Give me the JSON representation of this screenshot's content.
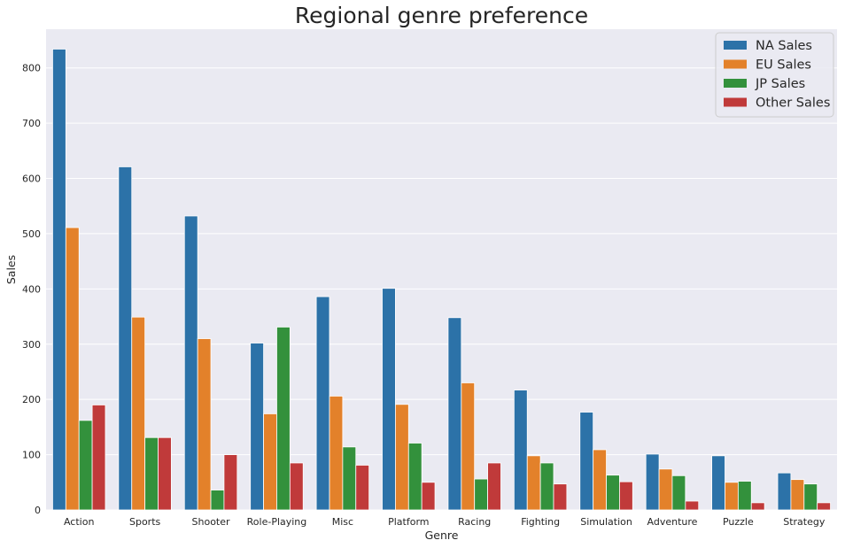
{
  "chart_data": {
    "type": "bar",
    "title": "Regional genre preference",
    "xlabel": "Genre",
    "ylabel": "Sales",
    "ylim": [
      0,
      870
    ],
    "yticks": [
      0,
      100,
      200,
      300,
      400,
      500,
      600,
      700,
      800
    ],
    "grid": true,
    "legend_position": "top-right",
    "categories": [
      "Action",
      "Sports",
      "Shooter",
      "Role-Playing",
      "Misc",
      "Platform",
      "Racing",
      "Fighting",
      "Simulation",
      "Adventure",
      "Puzzle",
      "Strategy"
    ],
    "series": [
      {
        "name": "NA Sales",
        "color": "#2c72a8",
        "values": [
          834,
          621,
          532,
          302,
          386,
          401,
          348,
          217,
          177,
          101,
          98,
          67
        ]
      },
      {
        "name": "EU Sales",
        "color": "#e3812a",
        "values": [
          511,
          349,
          310,
          174,
          206,
          191,
          230,
          98,
          109,
          74,
          50,
          55
        ]
      },
      {
        "name": "JP Sales",
        "color": "#33913c",
        "values": [
          162,
          131,
          36,
          331,
          114,
          121,
          56,
          85,
          63,
          62,
          52,
          47
        ]
      },
      {
        "name": "Other Sales",
        "color": "#c03a3a",
        "values": [
          190,
          131,
          100,
          85,
          81,
          50,
          85,
          47,
          51,
          16,
          13,
          13
        ]
      }
    ]
  }
}
